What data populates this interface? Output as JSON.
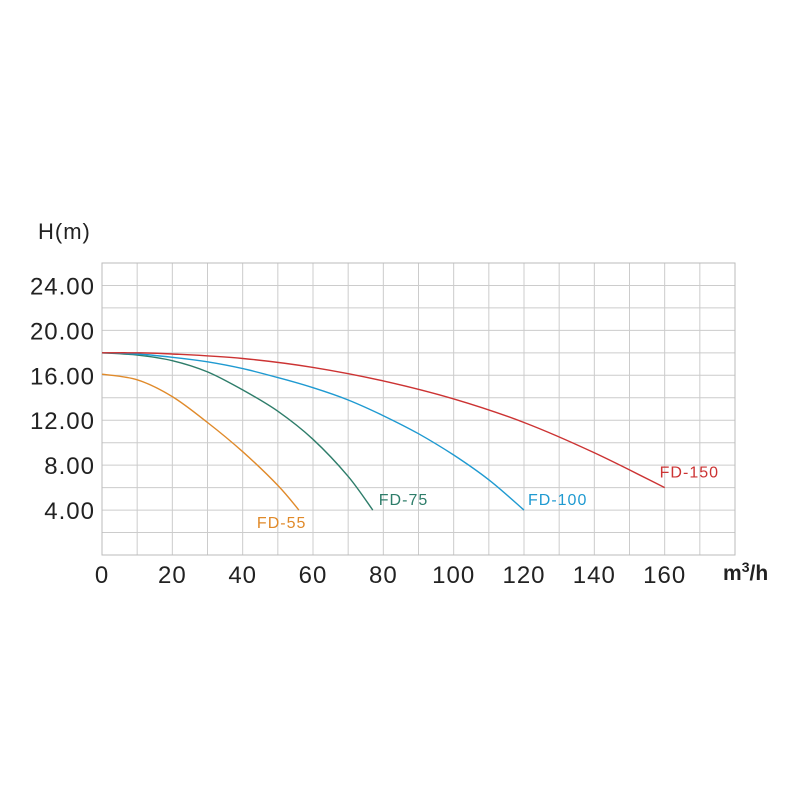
{
  "chart_data": {
    "type": "line",
    "title": "",
    "ylabel": "H(m)",
    "xlabel_unit": {
      "base": "m",
      "sup": "3",
      "tail": "/h"
    },
    "xlim": [
      0,
      180
    ],
    "ylim": [
      0,
      26
    ],
    "x_ticks": [
      0,
      20,
      40,
      60,
      80,
      100,
      120,
      140,
      160
    ],
    "x_tick_labels": [
      "0",
      "20",
      "40",
      "60",
      "80",
      "100",
      "120",
      "140",
      "160"
    ],
    "y_ticks": [
      4,
      8,
      12,
      16,
      20,
      24
    ],
    "y_tick_labels": [
      "4.00",
      "8.00",
      "12.00",
      "16.00",
      "20.00",
      "24.00"
    ],
    "grid": true,
    "grid_x_step": 10,
    "grid_y_step": 2,
    "series": [
      {
        "name": "FD-55",
        "color": "#e08a2a",
        "x": [
          0,
          10,
          20,
          30,
          40,
          50,
          56
        ],
        "y": [
          16.1,
          15.6,
          14.1,
          11.8,
          9.2,
          6.2,
          4.0
        ]
      },
      {
        "name": "FD-75",
        "color": "#2e7d6a",
        "x": [
          0,
          10,
          20,
          30,
          40,
          50,
          60,
          70,
          77
        ],
        "y": [
          18.0,
          17.8,
          17.3,
          16.3,
          14.7,
          12.8,
          10.3,
          7.0,
          4.0
        ]
      },
      {
        "name": "FD-100",
        "color": "#1f9ad1",
        "x": [
          0,
          10,
          20,
          30,
          40,
          50,
          60,
          70,
          80,
          90,
          100,
          110,
          120
        ],
        "y": [
          18.0,
          17.9,
          17.6,
          17.2,
          16.6,
          15.8,
          14.9,
          13.8,
          12.4,
          10.8,
          8.9,
          6.7,
          4.0
        ]
      },
      {
        "name": "FD-150",
        "color": "#cc3333",
        "x": [
          0,
          10,
          20,
          40,
          60,
          80,
          100,
          120,
          140,
          160
        ],
        "y": [
          18.0,
          18.0,
          17.9,
          17.5,
          16.7,
          15.5,
          13.9,
          11.8,
          9.1,
          6.0
        ]
      }
    ]
  }
}
